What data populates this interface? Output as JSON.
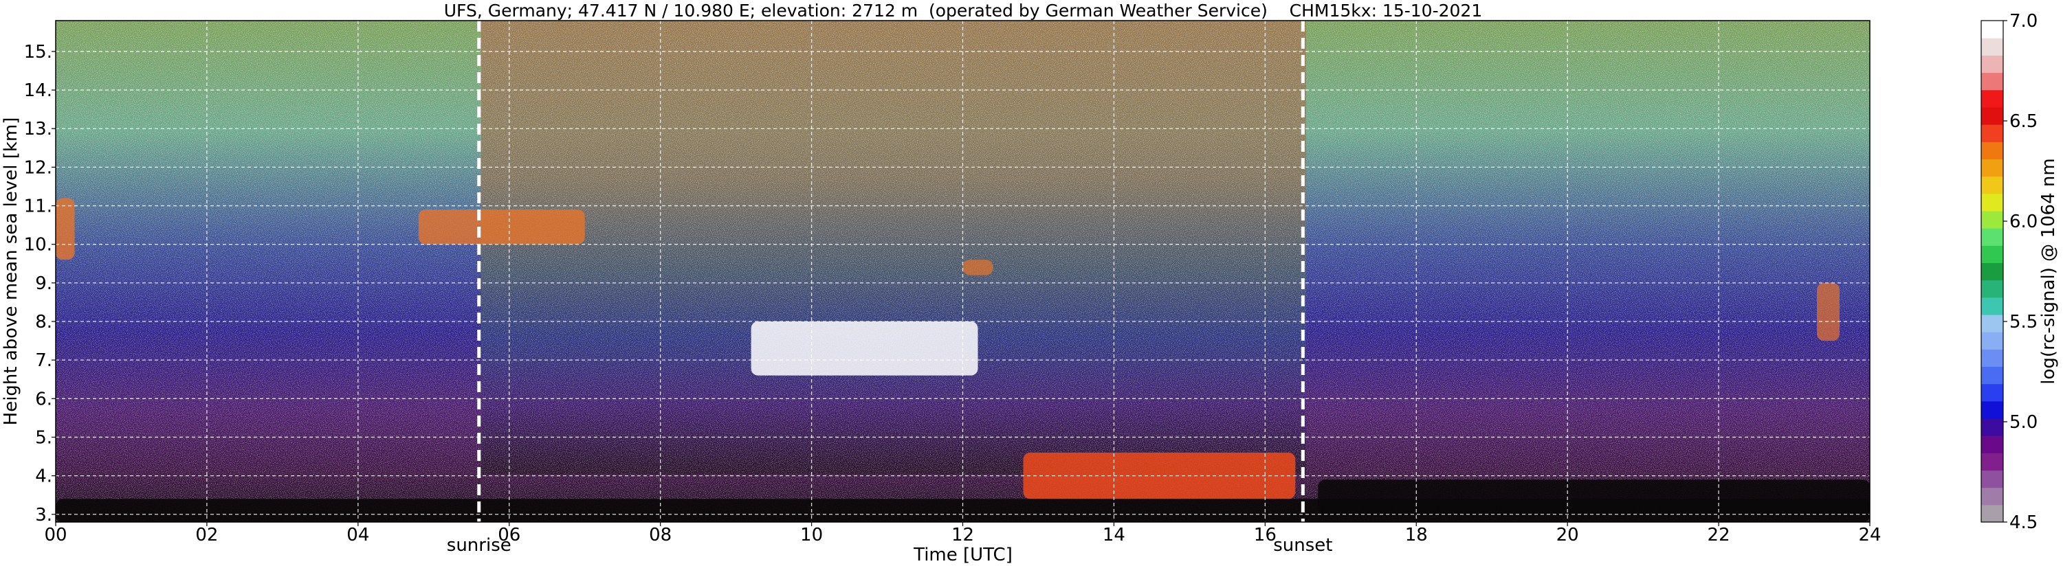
{
  "chart_data": {
    "type": "heatmap",
    "title": "UFS, Germany; 47.417 N / 10.980 E; elevation: 2712 m  (operated by German Weather Service)    CHM15kx: 15-10-2021",
    "xlabel": "Time [UTC]",
    "ylabel": "Height above mean sea level [km]",
    "colorbar_label": "log(rc-signal) @ 1064 nm",
    "xlim": [
      0,
      24
    ],
    "ylim": [
      2.8,
      15.8
    ],
    "x_ticks": [
      0,
      2,
      4,
      6,
      8,
      10,
      12,
      14,
      16,
      18,
      20,
      22,
      24
    ],
    "x_tick_labels": [
      "00",
      "02",
      "04",
      "06",
      "08",
      "10",
      "12",
      "14",
      "16",
      "18",
      "20",
      "22",
      "24"
    ],
    "y_ticks": [
      3,
      4,
      5,
      6,
      7,
      8,
      9,
      10,
      11,
      12,
      13,
      14,
      15
    ],
    "y_tick_labels": [
      "3.",
      "4.",
      "5.",
      "6.",
      "7.",
      "8.",
      "9.",
      "10.",
      "11.",
      "12.",
      "13.",
      "14.",
      "15."
    ],
    "grid": true,
    "colorbar_range": [
      4.5,
      7.0
    ],
    "colorbar_ticks": [
      4.5,
      5.0,
      5.5,
      6.0,
      6.5,
      7.0
    ],
    "colorbar_tick_labels": [
      "4.5",
      "5.0",
      "5.5",
      "6.0",
      "6.5",
      "7.0"
    ],
    "colorbar_colors": [
      "#a8a0a8",
      "#a07ca8",
      "#9050a0",
      "#80208c",
      "#6a0a8a",
      "#3c0ca0",
      "#1010d8",
      "#2a40f0",
      "#4a6cf0",
      "#6a8ef4",
      "#8aaef4",
      "#9cc6f0",
      "#3cc8b0",
      "#28b478",
      "#1a9c40",
      "#30c850",
      "#5ce070",
      "#9ce83c",
      "#e0e820",
      "#f0c818",
      "#f0a010",
      "#f07810",
      "#f04020",
      "#e01010",
      "#f01818",
      "#ec7878",
      "#ecb4b4",
      "#ecdcdc",
      "#ffffff"
    ],
    "markers": [
      {
        "label": "sunrise",
        "x": 5.6
      },
      {
        "label": "sunset",
        "x": 16.5
      }
    ],
    "features": [
      {
        "kind": "boundary layer",
        "x_range": [
          0,
          24
        ],
        "y_range": [
          2.8,
          3.4
        ]
      },
      {
        "kind": "cirrus",
        "x_range": [
          0,
          0.25
        ],
        "y_range": [
          9.6,
          11.2
        ]
      },
      {
        "kind": "cirrus",
        "x_range": [
          4.8,
          7.0
        ],
        "y_range": [
          10.0,
          10.9
        ]
      },
      {
        "kind": "mid-level cloud",
        "x_range": [
          9.2,
          12.2
        ],
        "y_range": [
          6.6,
          8.0
        ]
      },
      {
        "kind": "cloud patch",
        "x_range": [
          12.0,
          12.4
        ],
        "y_range": [
          9.2,
          9.6
        ]
      },
      {
        "kind": "low convective cloud",
        "x_range": [
          12.8,
          16.4
        ],
        "y_range": [
          3.4,
          4.6
        ]
      },
      {
        "kind": "low stratiform layer",
        "x_range": [
          16.7,
          24
        ],
        "y_range": [
          3.0,
          3.9
        ]
      },
      {
        "kind": "cloud patch",
        "x_range": [
          23.3,
          23.6
        ],
        "y_range": [
          7.5,
          9.0
        ]
      }
    ]
  }
}
